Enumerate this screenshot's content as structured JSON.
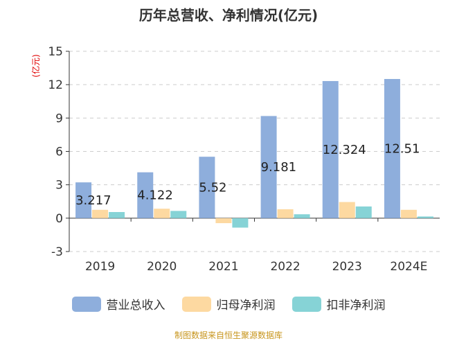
{
  "colors": {
    "revenue": "#8eaedc",
    "net_profit": "#fdd9a1",
    "deducted_net_profit": "#86d3d6",
    "axis_label": "#e00000",
    "source": "#c8961e"
  },
  "chart_data": {
    "type": "bar",
    "title": "历年总营收、净利情况(亿元)",
    "ylabel": "(亿元)",
    "xlabel": "",
    "categories": [
      "2019",
      "2020",
      "2021",
      "2022",
      "2023",
      "2024E"
    ],
    "ylim": [
      -3,
      15
    ],
    "yticks": [
      -3,
      0,
      3,
      6,
      9,
      12,
      15
    ],
    "ytick_labels": [
      "-3",
      "0",
      "3",
      "6",
      "9",
      "12",
      "15"
    ],
    "grid": true,
    "legend_position": "bottom",
    "series": [
      {
        "name": "营业总收入",
        "values": [
          3.217,
          4.122,
          5.52,
          9.181,
          12.324,
          12.51
        ],
        "data_labels": [
          "3.217",
          "4.122",
          "5.52",
          "9.181",
          "12.324",
          "12.51"
        ]
      },
      {
        "name": "归母净利润",
        "values": [
          0.75,
          0.85,
          -0.45,
          0.8,
          1.45,
          0.75
        ]
      },
      {
        "name": "扣非净利润",
        "values": [
          0.55,
          0.65,
          -0.85,
          0.35,
          1.05,
          0.15
        ]
      }
    ]
  },
  "source_note": "制图数据来自恒生聚源数据库"
}
